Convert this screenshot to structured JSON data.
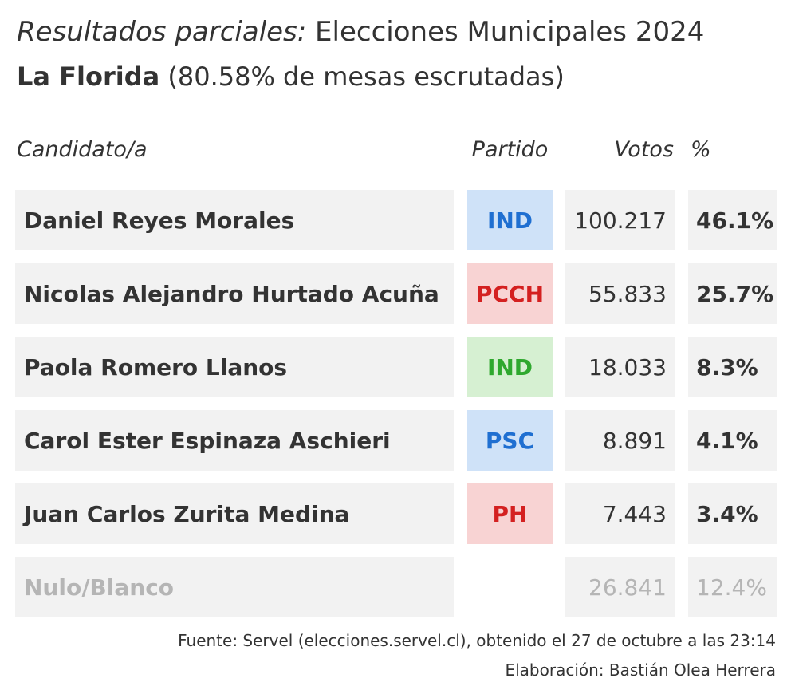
{
  "header": {
    "title_italic": "Resultados parciales:",
    "title_rest": " Elecciones Municipales 2024",
    "commune": "La Florida",
    "count_note": " (80.58% de mesas escrutadas)"
  },
  "columns": {
    "candidate": "Candidato/a",
    "party": "Partido",
    "votes": "Votos",
    "pct": "%"
  },
  "chart_data": {
    "type": "table",
    "title": "Resultados parciales: Elecciones Municipales 2024",
    "subtitle": "La Florida (80.58% de mesas escrutadas)",
    "columns": [
      "Candidato/a",
      "Partido",
      "Votos",
      "%"
    ],
    "rows": [
      {
        "candidate": "Daniel Reyes Morales",
        "party": "IND",
        "party_color": "#1f6fd1",
        "party_bg": "#cfe2f8",
        "votes_label": "100.217",
        "votes": 100217,
        "pct_label": "46.1%",
        "pct": 46.1
      },
      {
        "candidate": "Nicolas Alejandro Hurtado Acuña",
        "party": "PCCH",
        "party_color": "#d42020",
        "party_bg": "#f8d3d3",
        "votes_label": "55.833",
        "votes": 55833,
        "pct_label": "25.7%",
        "pct": 25.7
      },
      {
        "candidate": "Paola Romero Llanos",
        "party": "IND",
        "party_color": "#2ea82e",
        "party_bg": "#d6f0d2",
        "votes_label": "18.033",
        "votes": 18033,
        "pct_label": "8.3%",
        "pct": 8.3
      },
      {
        "candidate": "Carol Ester Espinaza Aschieri",
        "party": "PSC",
        "party_color": "#1f6fd1",
        "party_bg": "#cfe2f8",
        "votes_label": "8.891",
        "votes": 8891,
        "pct_label": "4.1%",
        "pct": 4.1
      },
      {
        "candidate": "Juan Carlos Zurita Medina",
        "party": "PH",
        "party_color": "#d42020",
        "party_bg": "#f8d3d3",
        "votes_label": "7.443",
        "votes": 7443,
        "pct_label": "3.4%",
        "pct": 3.4
      },
      {
        "candidate": "Nulo/Blanco",
        "party": "",
        "party_color": "",
        "party_bg": "",
        "votes_label": "26.841",
        "votes": 26841,
        "pct_label": "12.4%",
        "pct": 12.4,
        "muted": true
      }
    ]
  },
  "footer": {
    "source": "Fuente: Servel (elecciones.servel.cl), obtenido el 27 de octubre a las 23:14",
    "credit": "Elaboración: Bastián Olea Herrera"
  }
}
